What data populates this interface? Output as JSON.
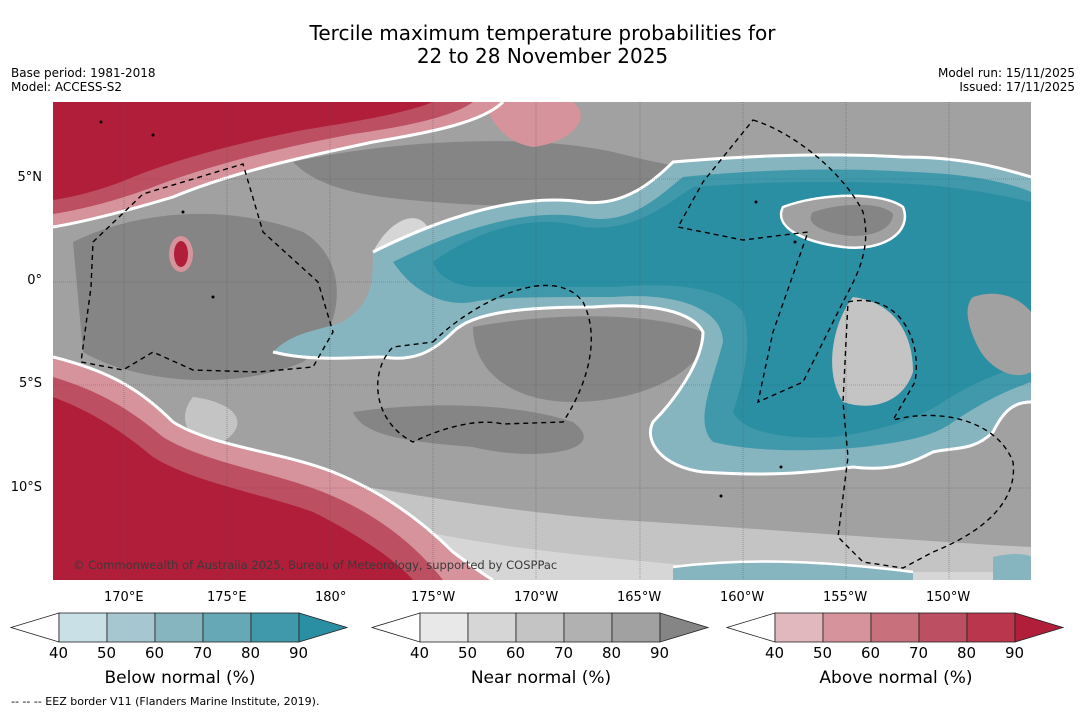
{
  "title": {
    "line1": "Tercile maximum temperature probabilities for",
    "line2": "22 to 28 November 2025"
  },
  "meta_left": {
    "base_period": "Base period: 1981-2018",
    "model": "Model: ACCESS-S2"
  },
  "meta_right": {
    "model_run": "Model run: 15/11/2025",
    "issued": "Issued: 17/11/2025"
  },
  "map": {
    "copyright": "© Commonwealth of Australia 2025, Bureau of Meteorology, supported by COSPPac",
    "lat_labels": [
      "5°N",
      "0°",
      "5°S",
      "10°S"
    ],
    "lon_labels": [
      "170°E",
      "175°E",
      "180°",
      "175°W",
      "170°W",
      "165°W",
      "160°W",
      "155°W",
      "150°W"
    ]
  },
  "colorbars": [
    {
      "label": "Below normal (%)",
      "ticks": [
        "40",
        "50",
        "60",
        "70",
        "80",
        "90"
      ],
      "colors": [
        "#ffffff",
        "#c8e0e6",
        "#a6c7cf",
        "#86b5c0",
        "#66a8b6",
        "#4099aa",
        "#2b8fa3"
      ]
    },
    {
      "label": "Near normal (%)",
      "ticks": [
        "40",
        "50",
        "60",
        "70",
        "80",
        "90"
      ],
      "colors": [
        "#ffffff",
        "#e8e8e8",
        "#d6d6d6",
        "#c4c4c4",
        "#b1b1b1",
        "#a1a1a1",
        "#858585"
      ]
    },
    {
      "label": "Above normal (%)",
      "ticks": [
        "40",
        "50",
        "60",
        "70",
        "80",
        "90"
      ],
      "colors": [
        "#ffffff",
        "#e2b8bf",
        "#d6939c",
        "#c8707c",
        "#bc4f62",
        "#b9364c",
        "#b01e3a"
      ]
    }
  ],
  "footnote": "--  --  -- EEZ border V11 (Flanders Marine Institute, 2019)."
}
